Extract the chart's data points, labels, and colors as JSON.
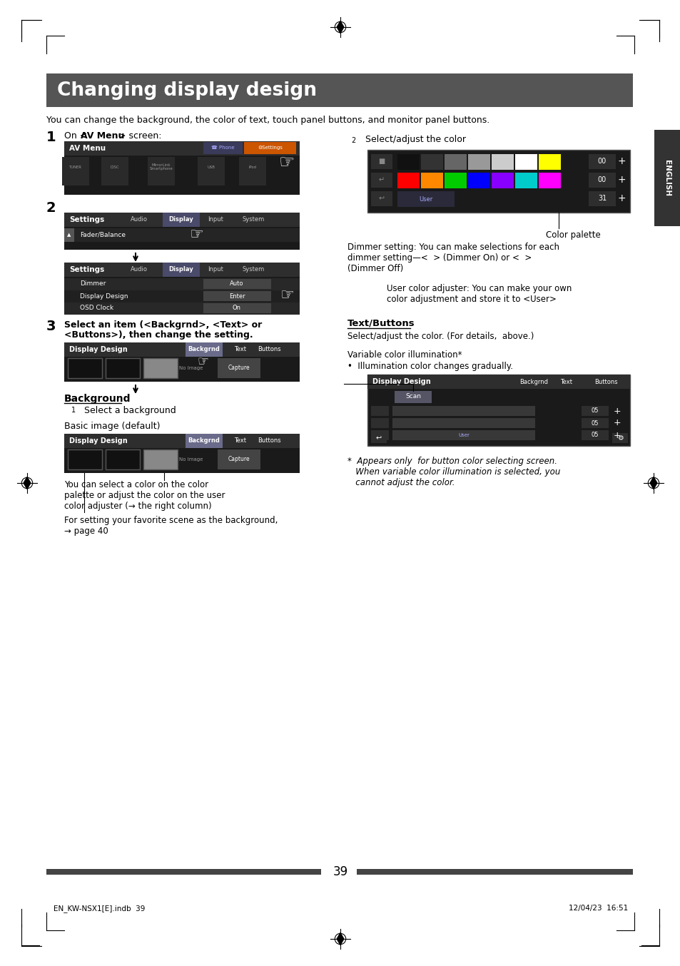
{
  "title": "Changing display design",
  "title_bg": "#555555",
  "title_color": "#ffffff",
  "page_bg": "#ffffff",
  "page_number": "39",
  "footer_left": "EN_KW-NSX1[E].indb  39",
  "footer_right": "12/04/23  16:51",
  "subtitle": "You can change the background, the color of text, touch panel buttons, and monitor panel buttons.",
  "step1_label": "1",
  "step2_label": "2",
  "step3_label": "3",
  "background_section": "Background",
  "bg_step1": "Select a background",
  "basic_image": "Basic image (default)",
  "color_palette_label": "Color palette",
  "dimmer_text": "Dimmer setting: You can make selections for each\ndimmer setting—<  > (Dimmer On) or <  >\n(Dimmer Off)",
  "user_color_text": "User color adjuster: You can make your own\ncolor adjustment and store it to <User>",
  "text_buttons_header": "Text/Buttons",
  "text_buttons_text": "Select/adjust the color. (For details,  above.)",
  "variable_color": "Variable color illumination*",
  "illumination_bullet": "•  Illumination color changes gradually.",
  "footnote": "*  Appears only  for button color selecting screen.\n   When variable color illumination is selected, you\n   cannot adjust the color.",
  "select_adjust": "Select/adjust the color",
  "you_can_select": "You can select a color on the color\npalette or adjust the color on the user\ncolor adjuster (→ the right column)",
  "for_setting": "For setting your favorite scene as the background,\n→ page 40"
}
